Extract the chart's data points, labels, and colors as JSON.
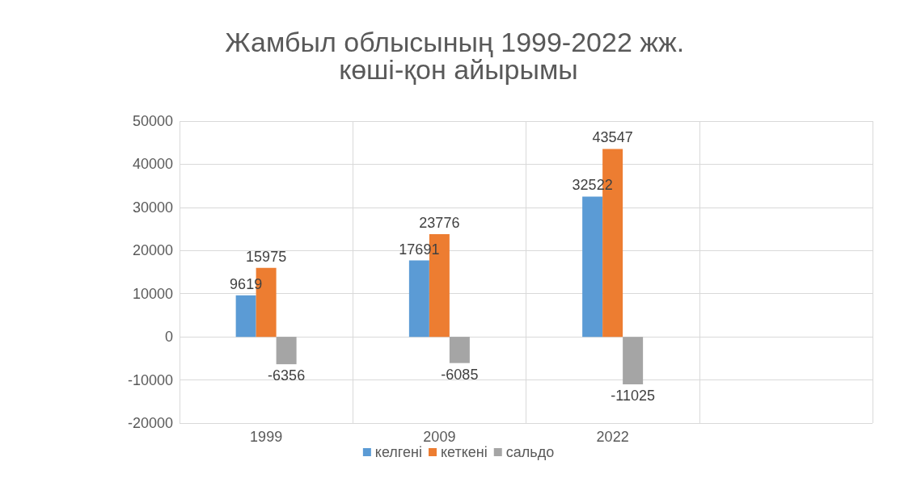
{
  "chart_data": {
    "type": "bar",
    "title": "Жамбыл облысының 1999-2022 жж. көші-қон айырымы",
    "categories": [
      "1999",
      "2009",
      "2022",
      null
    ],
    "series": [
      {
        "name": "келгені",
        "color": "#5b9bd5",
        "values": [
          9619,
          17691,
          32522,
          null
        ]
      },
      {
        "name": "кеткені",
        "color": "#ed7d31",
        "values": [
          15975,
          23776,
          43547,
          null
        ]
      },
      {
        "name": "сальдо",
        "color": "#a5a5a5",
        "values": [
          -6356,
          -6085,
          -11025,
          null
        ]
      }
    ],
    "ylim": [
      -20000,
      50000
    ],
    "yticks": [
      -20000,
      -10000,
      0,
      10000,
      20000,
      30000,
      40000,
      50000
    ],
    "grid": true,
    "legend": "bottom",
    "data_labels": true
  }
}
